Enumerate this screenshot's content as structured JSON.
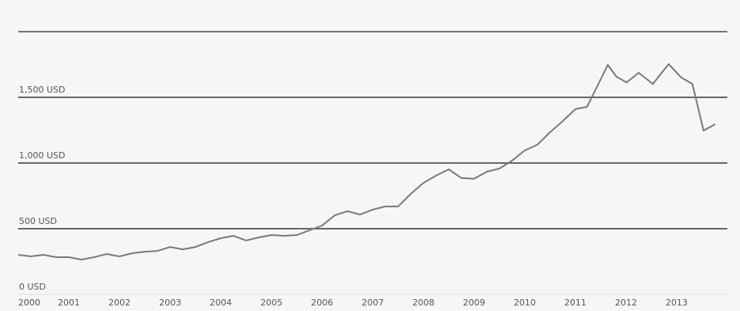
{
  "chart_data": {
    "type": "line",
    "x": [
      2000,
      2000.25,
      2000.5,
      2000.75,
      2001,
      2001.25,
      2001.5,
      2001.75,
      2002,
      2002.25,
      2002.5,
      2002.75,
      2003,
      2003.25,
      2003.5,
      2003.75,
      2004,
      2004.25,
      2004.5,
      2004.75,
      2005,
      2005.25,
      2005.5,
      2005.75,
      2006,
      2006.25,
      2006.5,
      2006.75,
      2007,
      2007.25,
      2007.5,
      2007.75,
      2008,
      2008.25,
      2008.5,
      2008.75,
      2009,
      2009.25,
      2009.5,
      2009.75,
      2010,
      2010.25,
      2010.5,
      2010.75,
      2011,
      2011.23,
      2011.64,
      2011.81,
      2012.01,
      2012.25,
      2012.53,
      2012.84,
      2013.09,
      2013.31,
      2013.53,
      2013.76
    ],
    "series": [
      {
        "color": "#7a7a7a",
        "values": [
          301,
          289,
          301,
          283,
          283,
          265,
          283,
          307,
          289,
          313,
          325,
          331,
          361,
          343,
          361,
          398,
          428,
          446,
          410,
          434,
          452,
          446,
          452,
          488,
          524,
          602,
          633,
          608,
          645,
          669,
          669,
          765,
          849,
          904,
          952,
          886,
          880,
          934,
          958,
          1018,
          1096,
          1139,
          1235,
          1319,
          1410,
          1428,
          1747,
          1657,
          1614,
          1687,
          1602,
          1753,
          1651,
          1602,
          1247,
          1295
        ]
      }
    ],
    "xlim": [
      2000,
      2014
    ],
    "xticks": [
      2000,
      2001,
      2002,
      2003,
      2004,
      2005,
      2006,
      2007,
      2008,
      2009,
      2010,
      2011,
      2012,
      2013
    ],
    "ylim": [
      0,
      2000
    ],
    "yticks": [
      {
        "value": 0,
        "label": "0 USD"
      },
      {
        "value": 500,
        "label": "500 USD"
      },
      {
        "value": 1000,
        "label": "1,000 USD"
      },
      {
        "value": 1500,
        "label": "1,500 USD"
      }
    ],
    "grid": true
  }
}
